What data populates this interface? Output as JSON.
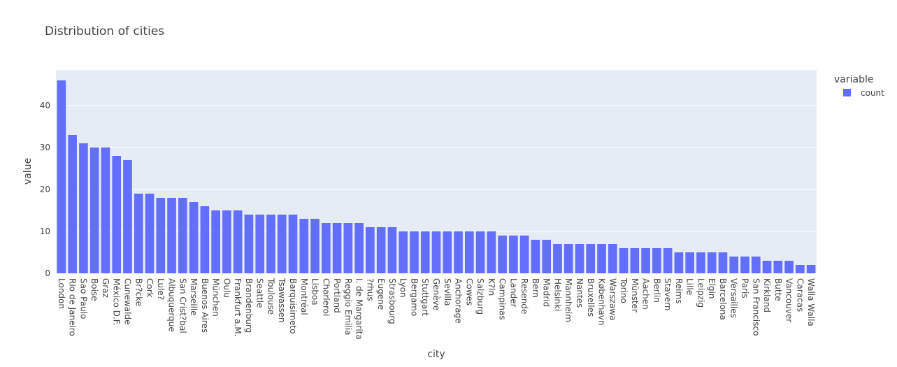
{
  "chart_data": {
    "type": "bar",
    "title": "Distribution of cities",
    "x_label": "city",
    "y_label": "value",
    "legend_title": "variable",
    "series": [
      {
        "name": "count",
        "color": "#636efa",
        "values": [
          46,
          33,
          31,
          30,
          30,
          28,
          27,
          19,
          19,
          18,
          18,
          18,
          17,
          16,
          15,
          15,
          15,
          14,
          14,
          14,
          14,
          14,
          13,
          13,
          12,
          12,
          12,
          12,
          11,
          11,
          11,
          10,
          10,
          10,
          10,
          10,
          10,
          10,
          10,
          10,
          9,
          9,
          9,
          8,
          8,
          7,
          7,
          7,
          7,
          7,
          7,
          6,
          6,
          6,
          6,
          6,
          5,
          5,
          5,
          5,
          5,
          4,
          4,
          4,
          3,
          3,
          3,
          2,
          2
        ]
      }
    ],
    "categories": [
      "London",
      "Rio de Janeiro",
      "Sao Paulo",
      "Boise",
      "Graz",
      "México D.F.",
      "Cunewalde",
      "Br?cke",
      "Cork",
      "Lule?",
      "Albuquerque",
      "San Crist?bal",
      "Marseille",
      "Buenos Aires",
      "München",
      "Oulu",
      "Frankfurt a.M.",
      "Brandenburg",
      "Seattle",
      "Toulouse",
      "Tsawassen",
      "Barquisimeto",
      "Montréal",
      "Lisboa",
      "Charleroi",
      "Portland",
      "Reggio Emilia",
      "I. de Margarita",
      "?rhus",
      "Eugene",
      "Strasbourg",
      "Lyon",
      "Bergamo",
      "Stuttgart",
      "Genève",
      "Sevilla",
      "Anchorage",
      "Cowes",
      "Salzburg",
      "K?ln",
      "Campinas",
      "Lander",
      "Resende",
      "Bern",
      "Madrid",
      "Helsinki",
      "Mannheim",
      "Nantes",
      "Bruxelles",
      "København",
      "Warszawa",
      "Torino",
      "Münster",
      "Aachen",
      "Berlin",
      "Stavern",
      "Reims",
      "Lille",
      "Leipzig",
      "Elgin",
      "Barcelona",
      "Versailles",
      "Paris",
      "San Francisco",
      "Kirkland",
      "Butte",
      "Vancouver",
      "Caracas",
      "Walla Walla"
    ],
    "ylim": [
      0,
      48.5
    ],
    "yticks": [
      0,
      10,
      20,
      30,
      40
    ],
    "grid": true
  }
}
